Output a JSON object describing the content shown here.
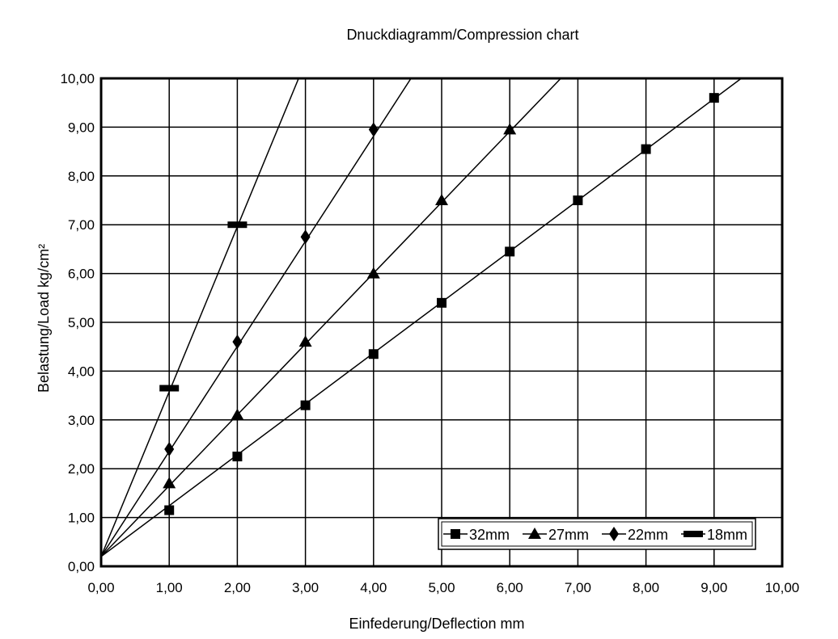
{
  "chart_data": {
    "type": "line",
    "title": "Dnuckdiagramm/Compression chart",
    "xlabel": "Einfederung/Deflection mm",
    "ylabel": "Belastung/Load kg/cm²",
    "xlim": [
      0,
      10
    ],
    "ylim": [
      0,
      10
    ],
    "x_ticks": [
      "0,00",
      "1,00",
      "2,00",
      "3,00",
      "4,00",
      "5,00",
      "6,00",
      "7,00",
      "8,00",
      "9,00",
      "10,00"
    ],
    "y_ticks": [
      "0,00",
      "1,00",
      "2,00",
      "3,00",
      "4,00",
      "5,00",
      "6,00",
      "7,00",
      "8,00",
      "9,00",
      "10,00"
    ],
    "grid": true,
    "legend_position": "bottom-right",
    "series": [
      {
        "name": "32mm",
        "marker": "square",
        "x": [
          1,
          2,
          3,
          4,
          5,
          6,
          7,
          8,
          9
        ],
        "y": [
          1.15,
          2.25,
          3.3,
          4.35,
          5.4,
          6.45,
          7.5,
          8.55,
          9.6
        ]
      },
      {
        "name": "27mm",
        "marker": "triangle",
        "x": [
          1,
          2,
          3,
          4,
          5,
          6
        ],
        "y": [
          1.7,
          3.1,
          4.6,
          6.0,
          7.5,
          8.95
        ]
      },
      {
        "name": "22mm",
        "marker": "diamond",
        "x": [
          1,
          2,
          3,
          4
        ],
        "y": [
          2.4,
          4.6,
          6.75,
          8.95
        ]
      },
      {
        "name": "18mm",
        "marker": "dash",
        "x": [
          1,
          2
        ],
        "y": [
          3.65,
          7.0
        ]
      }
    ],
    "fit_lines": [
      {
        "series": "32mm",
        "from": [
          0,
          0.2
        ],
        "to": [
          9.4,
          10
        ]
      },
      {
        "series": "27mm",
        "from": [
          0,
          0.2
        ],
        "to": [
          6.75,
          10
        ]
      },
      {
        "series": "22mm",
        "from": [
          0,
          0.2
        ],
        "to": [
          4.55,
          10
        ]
      },
      {
        "series": "18mm",
        "from": [
          0,
          0.2
        ],
        "to": [
          2.9,
          10
        ]
      }
    ]
  }
}
